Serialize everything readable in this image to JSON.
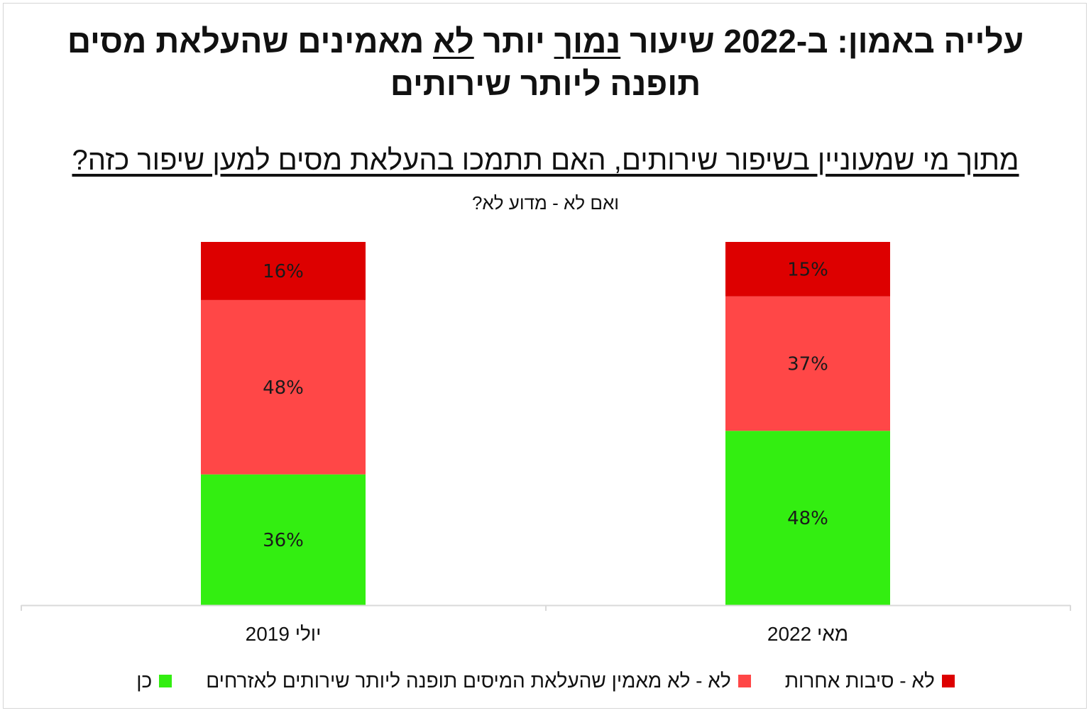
{
  "title_line1_part1": "עלייה באמון: ב-2022 שיעור ",
  "title_line1_underline1": "נמוך",
  "title_line1_part2": " יותר ",
  "title_line1_underline2": "לא",
  "title_line1_part3": " מאמינים שהעלאת מסים",
  "title_line2": "תופנה ליותר שירותים",
  "subtitle": "מתוך מי שמעוניין בשיפור שירותים, האם תתמכו בהעלאת מסים למען שיפור כזה?",
  "subtitle2": "ואם לא - מדוע לא?",
  "chart_data": {
    "type": "bar",
    "stacked": true,
    "categories": [
      "מאי 2022",
      "יולי 2019"
    ],
    "series": [
      {
        "name": "כן",
        "color": "#33ee11",
        "values": [
          48,
          36
        ]
      },
      {
        "name": "לא - לא מאמין שהעלאת המיסים תופנה ליותר שירותים לאזרחים",
        "color": "#ff4747",
        "values": [
          37,
          48
        ]
      },
      {
        "name": "לא - סיבות אחרות",
        "color": "#dd0000",
        "values": [
          15,
          16
        ]
      }
    ],
    "data_labels": [
      [
        "48%",
        "36%"
      ],
      [
        "37%",
        "48%"
      ],
      [
        "15%",
        "16%"
      ]
    ],
    "ylim": [
      0,
      100
    ],
    "grid": false,
    "legend_position": "bottom"
  },
  "legend": [
    {
      "label": "לא - סיבות אחרות",
      "color": "#dd0000"
    },
    {
      "label": "לא - לא מאמין שהעלאת המיסים תופנה ליותר שירותים לאזרחים",
      "color": "#ff4747"
    },
    {
      "label": "כן",
      "color": "#33ee11"
    }
  ]
}
